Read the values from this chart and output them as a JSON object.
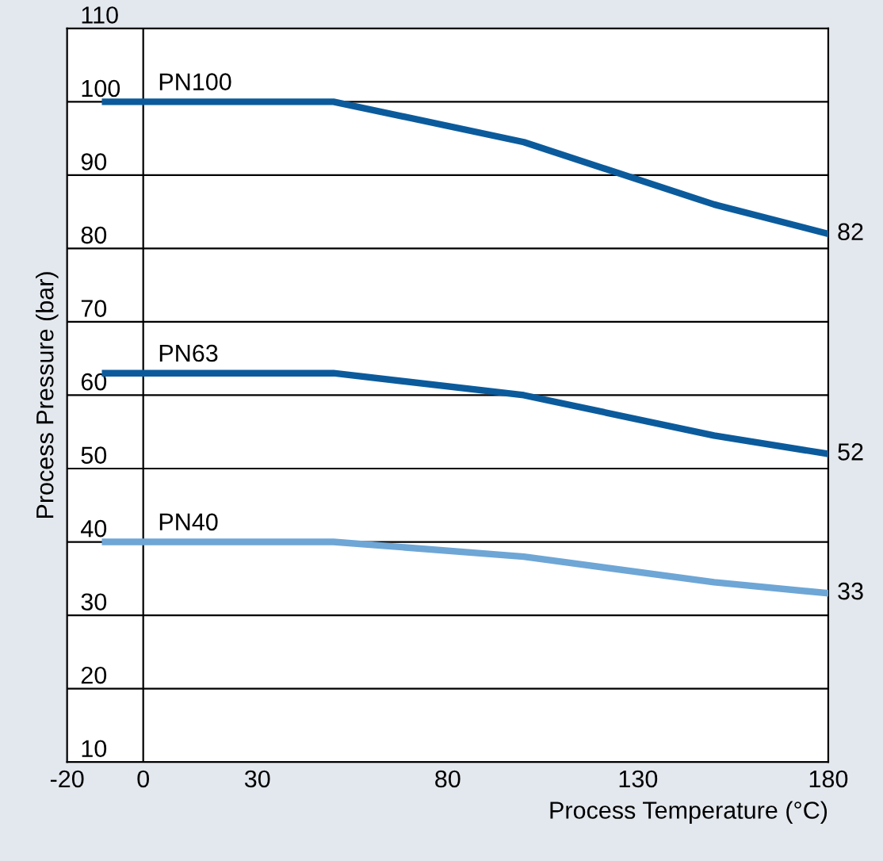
{
  "chart_data": {
    "type": "line",
    "xlabel": "Process Temperature (°C)",
    "ylabel": "Process Pressure (bar)",
    "xlim": [
      -20,
      180
    ],
    "xticks": [
      -20,
      0,
      30,
      80,
      130,
      180
    ],
    "ylim": [
      10,
      110
    ],
    "yticks": [
      10,
      20,
      30,
      40,
      50,
      60,
      70,
      80,
      90,
      100,
      110
    ],
    "grid": "y",
    "legend": false,
    "marker": "none",
    "line_style": "solid",
    "ref_lines": [
      {
        "axis": "x",
        "value": 0
      }
    ],
    "series": [
      {
        "name": "PN100",
        "color": "#0b5b9c",
        "x": [
          -10,
          50,
          100,
          150,
          180
        ],
        "values": [
          100,
          100,
          94.5,
          86,
          82
        ],
        "value_labels": [
          null,
          null,
          null,
          null,
          "82"
        ]
      },
      {
        "name": "PN63",
        "color": "#0b5b9c",
        "x": [
          -10,
          50,
          100,
          150,
          180
        ],
        "values": [
          63,
          63,
          60,
          54.5,
          52
        ],
        "value_labels": [
          null,
          null,
          null,
          null,
          "52"
        ]
      },
      {
        "name": "PN40",
        "color": "#6ea6d6",
        "x": [
          -10,
          50,
          100,
          150,
          180
        ],
        "values": [
          40,
          40,
          38,
          34.5,
          33
        ],
        "value_labels": [
          null,
          null,
          null,
          null,
          "33"
        ]
      }
    ]
  }
}
